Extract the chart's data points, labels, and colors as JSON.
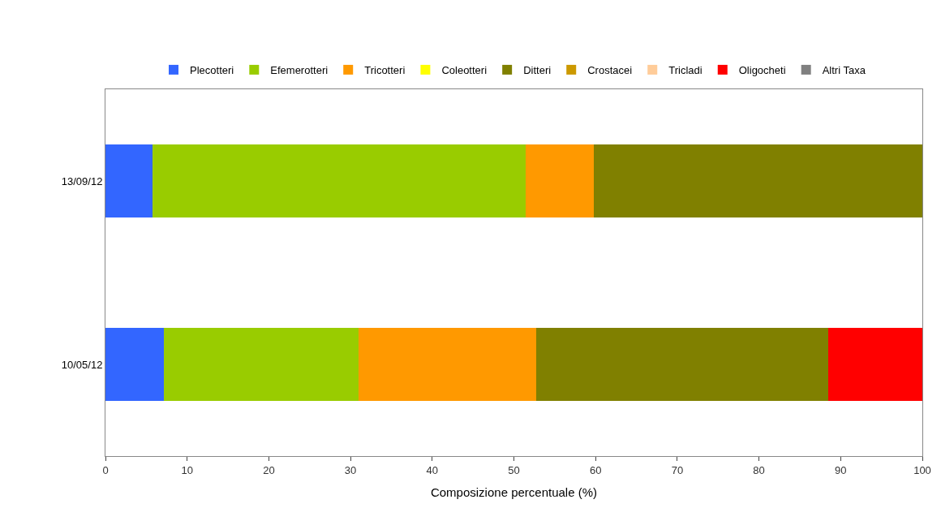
{
  "chart_data": {
    "type": "bar",
    "orientation": "horizontal",
    "stacked": true,
    "xlabel": "Composizione percentuale (%)",
    "categories": [
      "13/09/12",
      "10/05/12"
    ],
    "series": [
      {
        "name": "Plecotteri",
        "color": "#3366ff",
        "values": [
          5.8,
          7.1
        ]
      },
      {
        "name": "Efemerotteri",
        "color": "#99cc00",
        "values": [
          45.6,
          23.9
        ]
      },
      {
        "name": "Tricotteri",
        "color": "#ff9900",
        "values": [
          8.4,
          21.7
        ]
      },
      {
        "name": "Coleotteri",
        "color": "#ffff00",
        "values": [
          0,
          0
        ]
      },
      {
        "name": "Ditteri",
        "color": "#808000",
        "values": [
          40.2,
          35.8
        ]
      },
      {
        "name": "Crostacei",
        "color": "#cc9900",
        "values": [
          0,
          0
        ]
      },
      {
        "name": "Tricladi",
        "color": "#ffcc99",
        "values": [
          0,
          0
        ]
      },
      {
        "name": "Oligocheti",
        "color": "#ff0000",
        "values": [
          0,
          11.5
        ]
      },
      {
        "name": "Altri Taxa",
        "color": "#808080",
        "values": [
          0,
          0
        ]
      }
    ],
    "xlim": [
      0,
      100
    ],
    "xticks": [
      0,
      10,
      20,
      30,
      40,
      50,
      60,
      70,
      80,
      90,
      100
    ],
    "legend": "top"
  }
}
